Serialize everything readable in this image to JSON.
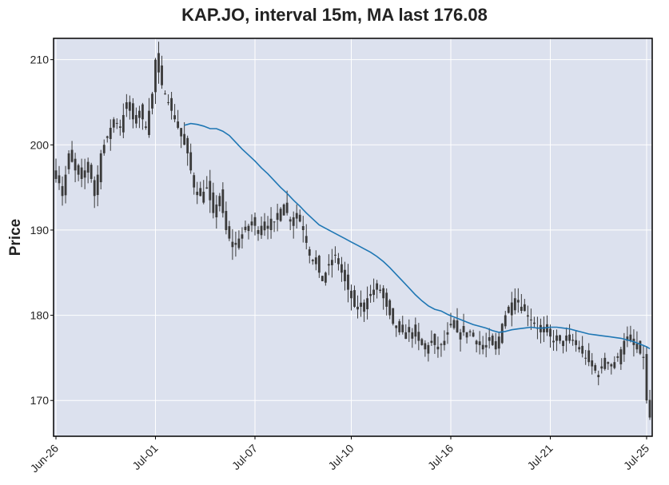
{
  "chart_data": {
    "type": "candlestick",
    "title": "KAP.JO, interval 15m, MA last 176.08",
    "ylabel": "Price",
    "xlabel": "",
    "ylim": [
      165.8,
      212.5
    ],
    "yticks": [
      170,
      180,
      190,
      200,
      210
    ],
    "x_tick_labels": [
      "Jun-26",
      "Jul-01",
      "Jul-07",
      "Jul-10",
      "Jul-16",
      "Jul-21",
      "Jul-25"
    ],
    "x_tick_index": [
      0,
      31,
      62,
      92,
      123,
      154,
      184
    ],
    "n_bars": 186,
    "grid": true,
    "colors": {
      "background": "#dce1ee",
      "grid": "#ffffff",
      "candle": "#3a3a3a",
      "ma_line": "#1f77b4"
    },
    "close_path": [
      [
        0,
        197
      ],
      [
        2,
        194
      ],
      [
        4,
        199
      ],
      [
        6,
        197
      ],
      [
        8,
        196
      ],
      [
        10,
        198
      ],
      [
        12,
        194
      ],
      [
        14,
        199
      ],
      [
        16,
        201
      ],
      [
        18,
        203
      ],
      [
        20,
        202
      ],
      [
        22,
        205
      ],
      [
        24,
        203
      ],
      [
        26,
        204
      ],
      [
        28,
        202
      ],
      [
        30,
        206
      ],
      [
        31,
        210
      ],
      [
        33,
        207
      ],
      [
        35,
        205
      ],
      [
        37,
        203
      ],
      [
        39,
        201
      ],
      [
        41,
        199
      ],
      [
        43,
        195
      ],
      [
        45,
        194
      ],
      [
        47,
        195
      ],
      [
        49,
        192
      ],
      [
        51,
        194
      ],
      [
        53,
        190
      ],
      [
        55,
        188
      ],
      [
        57,
        189
      ],
      [
        59,
        190
      ],
      [
        61,
        191
      ],
      [
        63,
        190
      ],
      [
        65,
        191
      ],
      [
        67,
        190
      ],
      [
        69,
        192
      ],
      [
        71,
        193
      ],
      [
        73,
        191
      ],
      [
        75,
        192
      ],
      [
        77,
        190
      ],
      [
        79,
        187
      ],
      [
        81,
        186
      ],
      [
        83,
        184
      ],
      [
        85,
        186
      ],
      [
        87,
        187
      ],
      [
        89,
        185
      ],
      [
        91,
        183
      ],
      [
        93,
        181
      ],
      [
        95,
        181
      ],
      [
        97,
        182
      ],
      [
        99,
        183
      ],
      [
        101,
        183
      ],
      [
        103,
        181
      ],
      [
        105,
        179
      ],
      [
        107,
        178
      ],
      [
        109,
        178
      ],
      [
        111,
        178
      ],
      [
        113,
        177
      ],
      [
        115,
        176
      ],
      [
        117,
        177
      ],
      [
        119,
        176
      ],
      [
        121,
        177
      ],
      [
        123,
        179
      ],
      [
        125,
        178
      ],
      [
        127,
        178
      ],
      [
        129,
        178
      ],
      [
        131,
        177
      ],
      [
        133,
        176
      ],
      [
        135,
        177
      ],
      [
        137,
        176
      ],
      [
        139,
        179
      ],
      [
        141,
        181
      ],
      [
        143,
        182
      ],
      [
        145,
        181
      ],
      [
        147,
        180
      ],
      [
        149,
        179
      ],
      [
        151,
        178
      ],
      [
        153,
        178
      ],
      [
        155,
        177
      ],
      [
        157,
        177
      ],
      [
        159,
        177
      ],
      [
        161,
        177
      ],
      [
        163,
        176
      ],
      [
        165,
        175
      ],
      [
        167,
        174
      ],
      [
        169,
        173
      ],
      [
        171,
        175
      ],
      [
        173,
        174
      ],
      [
        175,
        175
      ],
      [
        177,
        177
      ],
      [
        179,
        177
      ],
      [
        181,
        176
      ],
      [
        183,
        175
      ],
      [
        184,
        170
      ],
      [
        185,
        168
      ]
    ],
    "ma": {
      "name": "MA",
      "last": 176.08,
      "start_index": 40,
      "points": [
        [
          40,
          202.3
        ],
        [
          42,
          202.5
        ],
        [
          44,
          202.4
        ],
        [
          46,
          202.2
        ],
        [
          48,
          201.9
        ],
        [
          50,
          201.9
        ],
        [
          52,
          201.6
        ],
        [
          54,
          201.1
        ],
        [
          56,
          200.3
        ],
        [
          58,
          199.5
        ],
        [
          60,
          198.8
        ],
        [
          62,
          198.1
        ],
        [
          64,
          197.3
        ],
        [
          66,
          196.6
        ],
        [
          68,
          195.8
        ],
        [
          70,
          195.0
        ],
        [
          72,
          194.3
        ],
        [
          74,
          193.5
        ],
        [
          76,
          192.8
        ],
        [
          78,
          192.0
        ],
        [
          80,
          191.3
        ],
        [
          82,
          190.6
        ],
        [
          84,
          190.2
        ],
        [
          86,
          189.8
        ],
        [
          88,
          189.4
        ],
        [
          90,
          189.0
        ],
        [
          92,
          188.6
        ],
        [
          94,
          188.2
        ],
        [
          96,
          187.8
        ],
        [
          98,
          187.4
        ],
        [
          100,
          186.9
        ],
        [
          102,
          186.3
        ],
        [
          104,
          185.6
        ],
        [
          106,
          184.8
        ],
        [
          108,
          184.0
        ],
        [
          110,
          183.2
        ],
        [
          112,
          182.4
        ],
        [
          114,
          181.7
        ],
        [
          116,
          181.1
        ],
        [
          118,
          180.7
        ],
        [
          120,
          180.5
        ],
        [
          122,
          180.1
        ],
        [
          124,
          179.8
        ],
        [
          126,
          179.5
        ],
        [
          128,
          179.2
        ],
        [
          130,
          178.9
        ],
        [
          132,
          178.7
        ],
        [
          134,
          178.5
        ],
        [
          136,
          178.2
        ],
        [
          138,
          178.0
        ],
        [
          140,
          178.1
        ],
        [
          142,
          178.3
        ],
        [
          144,
          178.4
        ],
        [
          146,
          178.5
        ],
        [
          148,
          178.6
        ],
        [
          150,
          178.5
        ],
        [
          152,
          178.5
        ],
        [
          154,
          178.6
        ],
        [
          156,
          178.6
        ],
        [
          158,
          178.5
        ],
        [
          160,
          178.4
        ],
        [
          162,
          178.2
        ],
        [
          164,
          178.0
        ],
        [
          166,
          177.8
        ],
        [
          168,
          177.7
        ],
        [
          170,
          177.6
        ],
        [
          172,
          177.5
        ],
        [
          174,
          177.4
        ],
        [
          176,
          177.3
        ],
        [
          178,
          177.1
        ],
        [
          180,
          176.9
        ],
        [
          182,
          176.6
        ],
        [
          184,
          176.3
        ],
        [
          185,
          176.08
        ]
      ]
    }
  }
}
